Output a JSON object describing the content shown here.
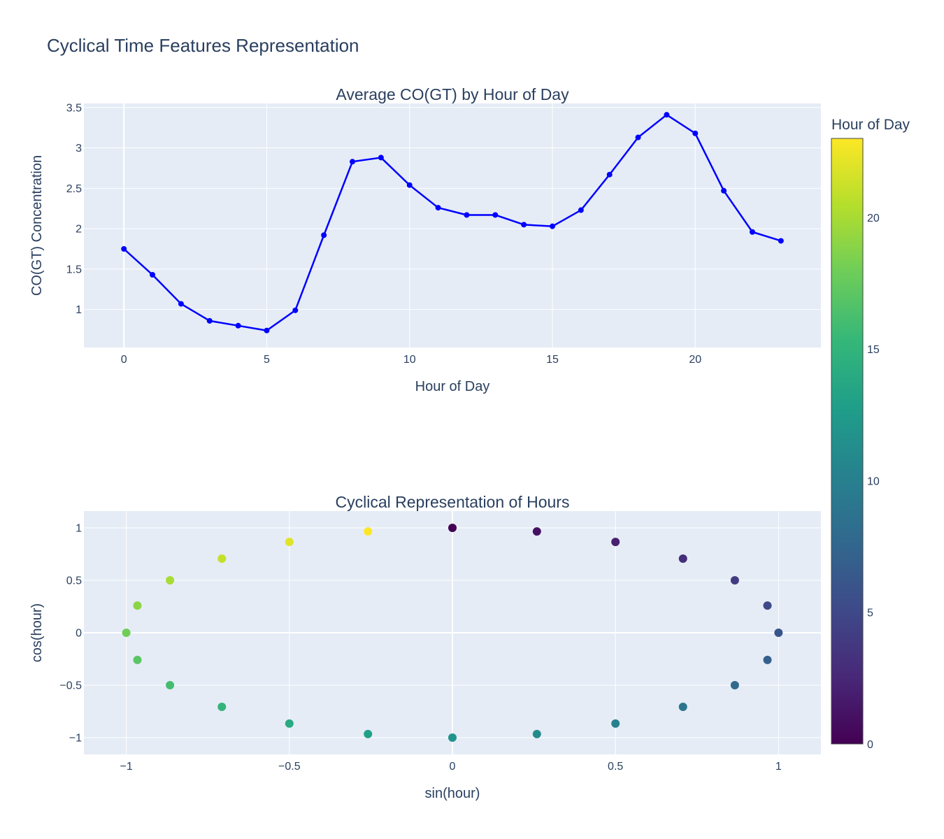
{
  "figure": {
    "title": "Cyclical Time Features Representation"
  },
  "chart_data": [
    {
      "type": "line",
      "title": "Average CO(GT) by Hour of Day",
      "xlabel": "Hour of Day",
      "ylabel": "CO(GT) Concentration",
      "xlim": [
        -1.4,
        24.4
      ],
      "ylim": [
        0.53,
        3.55
      ],
      "xticks": [
        0,
        5,
        10,
        15,
        20
      ],
      "yticks": [
        1,
        1.5,
        2,
        2.5,
        3,
        3.5
      ],
      "grid": true,
      "series": [
        {
          "color": "#0000ff",
          "x": [
            0,
            1,
            2,
            3,
            4,
            5,
            6,
            7,
            8,
            9,
            10,
            11,
            12,
            13,
            14,
            15,
            16,
            17,
            18,
            19,
            20,
            21,
            22,
            23
          ],
          "y": [
            1.75,
            1.43,
            1.07,
            0.86,
            0.8,
            0.74,
            0.99,
            1.92,
            2.83,
            2.88,
            2.54,
            2.26,
            2.17,
            2.17,
            2.05,
            2.03,
            2.23,
            2.67,
            3.13,
            3.41,
            3.18,
            2.47,
            1.96,
            1.85
          ]
        }
      ]
    },
    {
      "type": "scatter",
      "title": "Cyclical Representation of Hours",
      "xlabel": "sin(hour)",
      "ylabel": "cos(hour)",
      "xlim": [
        -1.13,
        1.13
      ],
      "ylim": [
        -1.16,
        1.16
      ],
      "xticks": [
        -1,
        -0.5,
        0,
        0.5,
        1
      ],
      "xtick_labels": [
        "−1",
        "−0.5",
        "0",
        "0.5",
        "1"
      ],
      "yticks": [
        -1,
        -0.5,
        0,
        0.5,
        1
      ],
      "ytick_labels": [
        "−1",
        "−0.5",
        "0",
        "0.5",
        "1"
      ],
      "grid": true,
      "colorscale": "Viridis",
      "colorbar": {
        "title": "Hour of Day",
        "range": [
          0,
          23
        ],
        "ticks": [
          0,
          5,
          10,
          15,
          20
        ]
      },
      "hours": [
        0,
        1,
        2,
        3,
        4,
        5,
        6,
        7,
        8,
        9,
        10,
        11,
        12,
        13,
        14,
        15,
        16,
        17,
        18,
        19,
        20,
        21,
        22,
        23
      ],
      "x": [
        0,
        0.259,
        0.5,
        0.707,
        0.866,
        0.966,
        1,
        0.966,
        0.866,
        0.707,
        0.5,
        0.259,
        0,
        -0.259,
        -0.5,
        -0.707,
        -0.866,
        -0.966,
        -1,
        -0.966,
        -0.866,
        -0.707,
        -0.5,
        -0.259
      ],
      "y": [
        1,
        0.966,
        0.866,
        0.707,
        0.5,
        0.259,
        0,
        -0.259,
        -0.5,
        -0.707,
        -0.866,
        -0.966,
        -1,
        -0.966,
        -0.866,
        -0.707,
        -0.5,
        -0.259,
        0,
        0.259,
        0.5,
        0.707,
        0.866,
        0.966
      ]
    }
  ]
}
